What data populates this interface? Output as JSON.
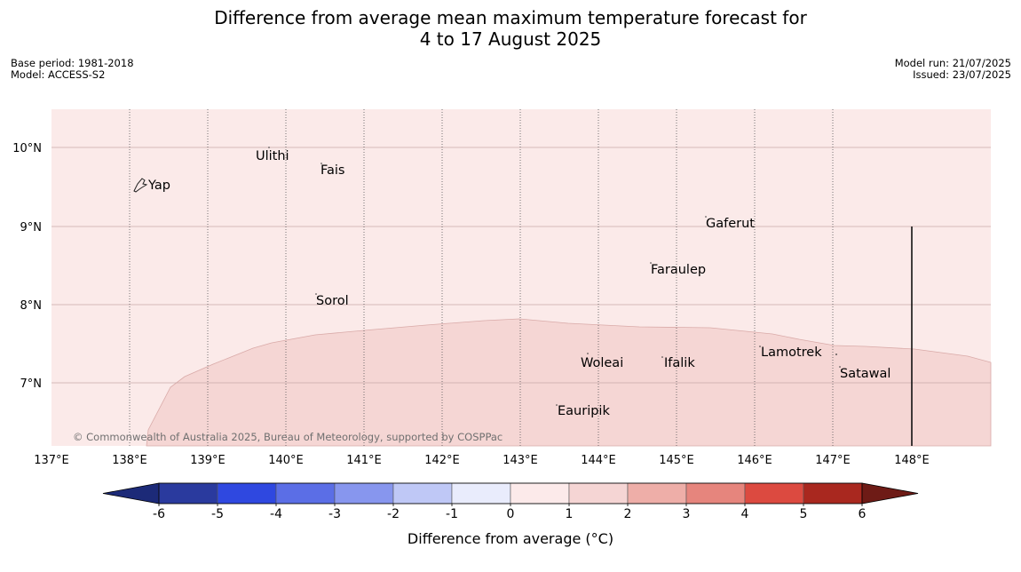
{
  "title_line1": "Difference from average mean maximum temperature forecast for",
  "title_line2": "4 to 17 August 2025",
  "base_period": "Base period: 1981-2018",
  "model": "Model: ACCESS-S2",
  "model_run": "Model run: 21/07/2025",
  "issued": "Issued: 23/07/2025",
  "copyright": "© Commonwealth of Australia 2025, Bureau of Meteorology, supported by COSPPac",
  "lat_labels": [
    "10°N",
    "9°N",
    "8°N",
    "7°N"
  ],
  "lon_labels": [
    "137°E",
    "138°E",
    "139°E",
    "140°E",
    "141°E",
    "142°E",
    "143°E",
    "144°E",
    "145°E",
    "146°E",
    "147°E",
    "148°E"
  ],
  "places": [
    "Yap",
    "Ulithi",
    "Fais",
    "Gaferut",
    "Faraulep",
    "Sorol",
    "Woleai",
    "Ifalik",
    "Lamotrek",
    "Satawal",
    "Eauripik"
  ],
  "colorbar": {
    "label": "Difference from average (°C)",
    "ticks": [
      "-6",
      "-5",
      "-4",
      "-3",
      "-2",
      "-1",
      "0",
      "1",
      "2",
      "3",
      "4",
      "5",
      "6"
    ],
    "colors": [
      "#2a3a9e",
      "#2f48e0",
      "#5b6ee6",
      "#8796ee",
      "#bfc8f6",
      "#e9ecfc",
      "#fceaea",
      "#f5d5d4",
      "#eeaea8",
      "#e6857d",
      "#dc4a40",
      "#a9281f"
    ],
    "under_color": "#1c2a78",
    "over_color": "#6e1b16"
  },
  "fill_colors": {
    "band_0_1": "#fbeae9",
    "band_1_2": "#f5d6d4"
  }
}
